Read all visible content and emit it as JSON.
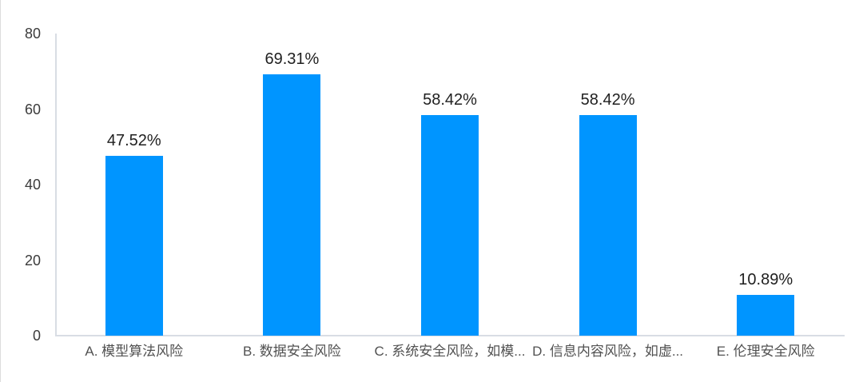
{
  "chart_data": {
    "type": "bar",
    "title": "",
    "xlabel": "",
    "ylabel": "",
    "categories": [
      "A. 模型算法风险",
      "B. 数据安全风险",
      "C. 系统安全风险，如模...",
      "D. 信息内容风险，如虚...",
      "E. 伦理安全风险"
    ],
    "values": [
      47.52,
      69.31,
      58.42,
      58.42,
      10.89
    ],
    "value_labels": [
      "47.52%",
      "69.31%",
      "58.42%",
      "58.42%",
      "10.89%"
    ],
    "ylim": [
      0,
      80
    ],
    "yticks": [
      0,
      20,
      40,
      60,
      80
    ],
    "grid": false,
    "legend_position": "none",
    "colors": {
      "bar": "#0095FF",
      "axis_line": "#d8dde4",
      "value_label": "#1f1f1f",
      "tick_label": "#3b3b3b",
      "category_label": "#515151",
      "background": "#ffffff"
    }
  }
}
